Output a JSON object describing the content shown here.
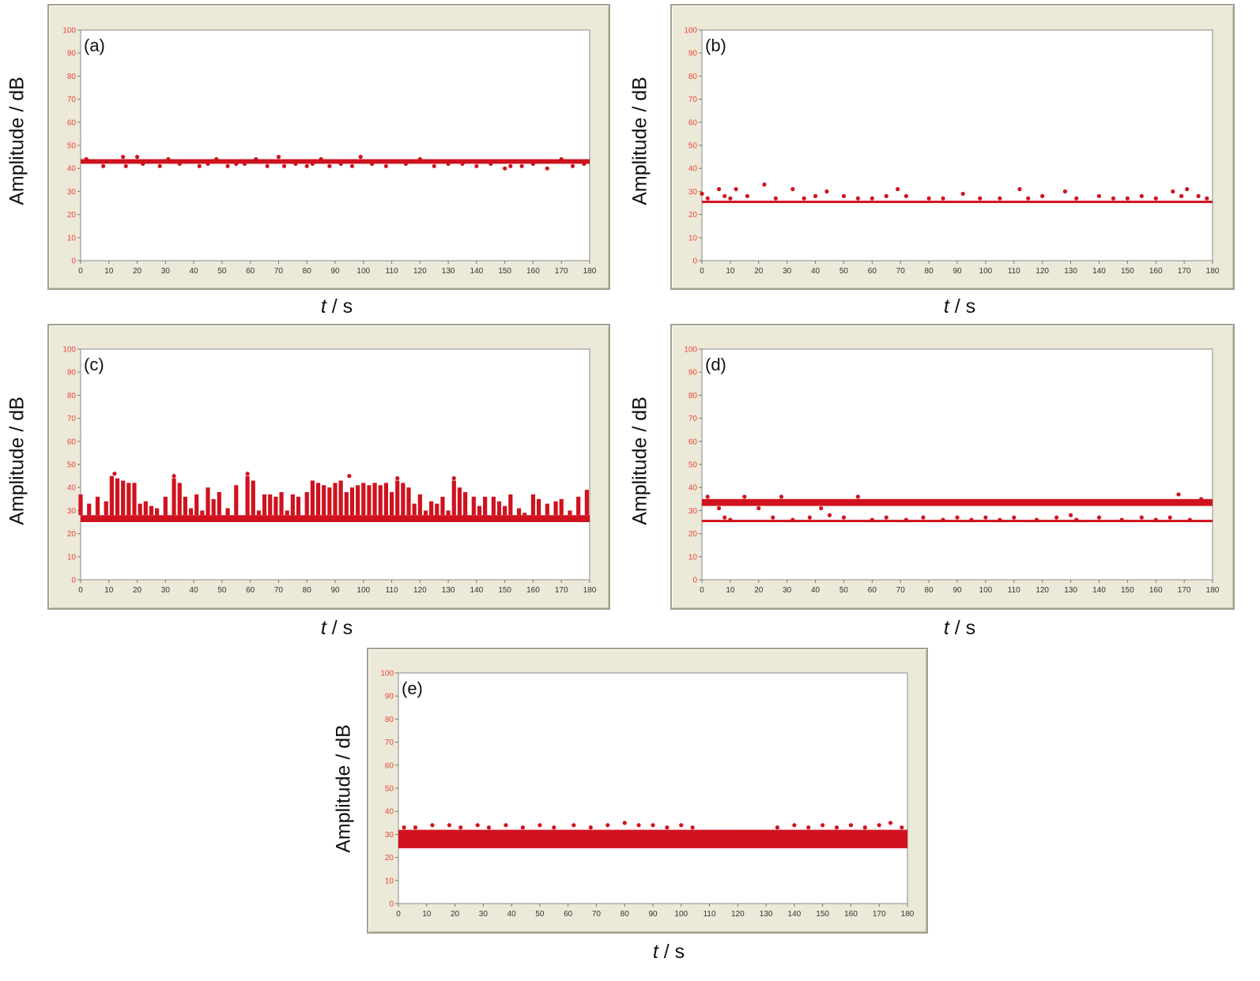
{
  "colors": {
    "marker": "#d0121e",
    "ytick": "#e8463d",
    "xtick": "#333333",
    "frame": "#ece9d8",
    "plot_bg": "#ffffff"
  },
  "chart_data": [
    {
      "type": "scatter",
      "panel_label": "(a)",
      "xlabel_var": "t",
      "xlabel_unit": " / s",
      "ylabel": "Amplitude / dB",
      "xlim": [
        0,
        180
      ],
      "ylim": [
        0,
        100
      ],
      "xticks": [
        "0",
        "10",
        "20",
        "30",
        "40",
        "50",
        "60",
        "70",
        "80",
        "90",
        "100",
        "110",
        "120",
        "130",
        "140",
        "150",
        "160",
        "170",
        "180"
      ],
      "yticks": [
        "0",
        "10",
        "20",
        "30",
        "40",
        "50",
        "60",
        "70",
        "80",
        "90",
        "100"
      ],
      "band": {
        "x": [
          0,
          180
        ],
        "y": [
          42,
          44
        ]
      },
      "points": [
        [
          2,
          44
        ],
        [
          8,
          41
        ],
        [
          15,
          45
        ],
        [
          16,
          41
        ],
        [
          20,
          45
        ],
        [
          22,
          42
        ],
        [
          28,
          41
        ],
        [
          31,
          44
        ],
        [
          35,
          42
        ],
        [
          42,
          41
        ],
        [
          45,
          42
        ],
        [
          48,
          44
        ],
        [
          52,
          41
        ],
        [
          55,
          42
        ],
        [
          58,
          42
        ],
        [
          62,
          44
        ],
        [
          66,
          41
        ],
        [
          70,
          45
        ],
        [
          72,
          41
        ],
        [
          76,
          42
        ],
        [
          80,
          41
        ],
        [
          82,
          42
        ],
        [
          85,
          44
        ],
        [
          88,
          41
        ],
        [
          92,
          42
        ],
        [
          96,
          41
        ],
        [
          99,
          45
        ],
        [
          103,
          42
        ],
        [
          108,
          41
        ],
        [
          115,
          42
        ],
        [
          120,
          44
        ],
        [
          125,
          41
        ],
        [
          130,
          42
        ],
        [
          135,
          42
        ],
        [
          140,
          41
        ],
        [
          145,
          42
        ],
        [
          150,
          40
        ],
        [
          152,
          41
        ],
        [
          156,
          41
        ],
        [
          160,
          42
        ],
        [
          165,
          40
        ],
        [
          170,
          44
        ],
        [
          174,
          41
        ],
        [
          178,
          42
        ]
      ]
    },
    {
      "type": "scatter",
      "panel_label": "(b)",
      "xlabel_var": "t",
      "xlabel_unit": " / s",
      "ylabel": "Amplitude / dB",
      "xlim": [
        0,
        180
      ],
      "ylim": [
        0,
        100
      ],
      "xticks": [
        "0",
        "10",
        "20",
        "30",
        "40",
        "50",
        "60",
        "70",
        "80",
        "90",
        "100",
        "110",
        "120",
        "130",
        "140",
        "150",
        "160",
        "170",
        "180"
      ],
      "yticks": [
        "0",
        "10",
        "20",
        "30",
        "40",
        "50",
        "60",
        "70",
        "80",
        "90",
        "100"
      ],
      "band": {
        "x": [
          0,
          180
        ],
        "y": [
          25,
          26
        ]
      },
      "points": [
        [
          0,
          29
        ],
        [
          2,
          27
        ],
        [
          6,
          31
        ],
        [
          8,
          28
        ],
        [
          10,
          27
        ],
        [
          12,
          31
        ],
        [
          16,
          28
        ],
        [
          22,
          33
        ],
        [
          26,
          27
        ],
        [
          32,
          31
        ],
        [
          36,
          27
        ],
        [
          40,
          28
        ],
        [
          44,
          30
        ],
        [
          50,
          28
        ],
        [
          55,
          27
        ],
        [
          60,
          27
        ],
        [
          65,
          28
        ],
        [
          69,
          31
        ],
        [
          72,
          28
        ],
        [
          80,
          27
        ],
        [
          85,
          27
        ],
        [
          92,
          29
        ],
        [
          98,
          27
        ],
        [
          105,
          27
        ],
        [
          112,
          31
        ],
        [
          115,
          27
        ],
        [
          120,
          28
        ],
        [
          128,
          30
        ],
        [
          132,
          27
        ],
        [
          140,
          28
        ],
        [
          145,
          27
        ],
        [
          150,
          27
        ],
        [
          155,
          28
        ],
        [
          160,
          27
        ],
        [
          166,
          30
        ],
        [
          169,
          28
        ],
        [
          171,
          31
        ],
        [
          175,
          28
        ],
        [
          178,
          27
        ]
      ]
    },
    {
      "type": "scatter",
      "panel_label": "(c)",
      "xlabel_var": "t",
      "xlabel_unit": " / s",
      "ylabel": "Amplitude / dB",
      "xlim": [
        0,
        180
      ],
      "ylim": [
        0,
        100
      ],
      "xticks": [
        "0",
        "10",
        "20",
        "30",
        "40",
        "50",
        "60",
        "70",
        "80",
        "90",
        "100",
        "110",
        "120",
        "130",
        "140",
        "150",
        "160",
        "170",
        "180"
      ],
      "yticks": [
        "0",
        "10",
        "20",
        "30",
        "40",
        "50",
        "60",
        "70",
        "80",
        "90",
        "100"
      ],
      "band": {
        "x": [
          0,
          180
        ],
        "y": [
          25,
          28
        ]
      },
      "bursts": [
        [
          0,
          37
        ],
        [
          3,
          33
        ],
        [
          6,
          36
        ],
        [
          9,
          34
        ],
        [
          11,
          45
        ],
        [
          13,
          44
        ],
        [
          15,
          43
        ],
        [
          17,
          42
        ],
        [
          19,
          42
        ],
        [
          21,
          33
        ],
        [
          23,
          34
        ],
        [
          25,
          32
        ],
        [
          27,
          31
        ],
        [
          30,
          36
        ],
        [
          33,
          44
        ],
        [
          35,
          42
        ],
        [
          37,
          36
        ],
        [
          39,
          31
        ],
        [
          41,
          37
        ],
        [
          43,
          30
        ],
        [
          45,
          40
        ],
        [
          47,
          35
        ],
        [
          49,
          38
        ],
        [
          52,
          31
        ],
        [
          55,
          41
        ],
        [
          59,
          45
        ],
        [
          61,
          43
        ],
        [
          63,
          30
        ],
        [
          65,
          37
        ],
        [
          67,
          37
        ],
        [
          69,
          36
        ],
        [
          71,
          38
        ],
        [
          73,
          30
        ],
        [
          75,
          37
        ],
        [
          77,
          36
        ],
        [
          80,
          38
        ],
        [
          82,
          43
        ],
        [
          84,
          42
        ],
        [
          86,
          41
        ],
        [
          88,
          40
        ],
        [
          90,
          42
        ],
        [
          92,
          43
        ],
        [
          94,
          38
        ],
        [
          96,
          40
        ],
        [
          98,
          41
        ],
        [
          100,
          42
        ],
        [
          102,
          41
        ],
        [
          104,
          42
        ],
        [
          106,
          41
        ],
        [
          108,
          42
        ],
        [
          110,
          38
        ],
        [
          112,
          43
        ],
        [
          114,
          42
        ],
        [
          116,
          40
        ],
        [
          118,
          33
        ],
        [
          120,
          37
        ],
        [
          122,
          30
        ],
        [
          124,
          34
        ],
        [
          126,
          33
        ],
        [
          128,
          36
        ],
        [
          130,
          30
        ],
        [
          132,
          43
        ],
        [
          134,
          40
        ],
        [
          136,
          38
        ],
        [
          139,
          36
        ],
        [
          141,
          32
        ],
        [
          143,
          36
        ],
        [
          146,
          36
        ],
        [
          148,
          34
        ],
        [
          150,
          32
        ],
        [
          152,
          37
        ],
        [
          155,
          31
        ],
        [
          157,
          29
        ],
        [
          160,
          37
        ],
        [
          162,
          35
        ],
        [
          165,
          33
        ],
        [
          168,
          34
        ],
        [
          170,
          35
        ],
        [
          173,
          30
        ],
        [
          176,
          36
        ],
        [
          179,
          39
        ]
      ],
      "points": [
        [
          12,
          46
        ],
        [
          33,
          45
        ],
        [
          59,
          46
        ],
        [
          95,
          45
        ],
        [
          112,
          44
        ],
        [
          132,
          44
        ]
      ]
    },
    {
      "type": "scatter",
      "panel_label": "(d)",
      "xlabel_var": "t",
      "xlabel_unit": " / s",
      "ylabel": "Amplitude / dB",
      "xlim": [
        0,
        180
      ],
      "ylim": [
        0,
        100
      ],
      "xticks": [
        "0",
        "10",
        "20",
        "30",
        "40",
        "50",
        "60",
        "70",
        "80",
        "90",
        "100",
        "110",
        "120",
        "130",
        "140",
        "150",
        "160",
        "170",
        "180"
      ],
      "yticks": [
        "0",
        "10",
        "20",
        "30",
        "40",
        "50",
        "60",
        "70",
        "80",
        "90",
        "100"
      ],
      "bands": [
        {
          "x": [
            0,
            180
          ],
          "y": [
            32,
            35
          ]
        },
        {
          "x": [
            0,
            180
          ],
          "y": [
            25,
            26
          ]
        }
      ],
      "points": [
        [
          2,
          36
        ],
        [
          6,
          31
        ],
        [
          8,
          27
        ],
        [
          10,
          26
        ],
        [
          15,
          36
        ],
        [
          20,
          31
        ],
        [
          25,
          27
        ],
        [
          28,
          36
        ],
        [
          32,
          26
        ],
        [
          38,
          27
        ],
        [
          42,
          31
        ],
        [
          45,
          28
        ],
        [
          50,
          27
        ],
        [
          55,
          36
        ],
        [
          60,
          26
        ],
        [
          65,
          27
        ],
        [
          72,
          26
        ],
        [
          78,
          27
        ],
        [
          85,
          26
        ],
        [
          90,
          27
        ],
        [
          95,
          26
        ],
        [
          100,
          27
        ],
        [
          105,
          26
        ],
        [
          110,
          27
        ],
        [
          118,
          26
        ],
        [
          125,
          27
        ],
        [
          130,
          28
        ],
        [
          132,
          26
        ],
        [
          140,
          27
        ],
        [
          148,
          26
        ],
        [
          155,
          27
        ],
        [
          160,
          26
        ],
        [
          165,
          27
        ],
        [
          168,
          37
        ],
        [
          172,
          26
        ],
        [
          176,
          35
        ]
      ]
    },
    {
      "type": "scatter",
      "panel_label": "(e)",
      "xlabel_var": "t",
      "xlabel_unit": " / s",
      "ylabel": "Amplitude / dB",
      "xlim": [
        0,
        180
      ],
      "ylim": [
        0,
        100
      ],
      "xticks": [
        "0",
        "10",
        "20",
        "30",
        "40",
        "50",
        "60",
        "70",
        "80",
        "90",
        "100",
        "110",
        "120",
        "130",
        "140",
        "150",
        "160",
        "170",
        "180"
      ],
      "yticks": [
        "0",
        "10",
        "20",
        "30",
        "40",
        "50",
        "60",
        "70",
        "80",
        "90",
        "100"
      ],
      "band": {
        "x": [
          0,
          180
        ],
        "y": [
          24,
          32
        ]
      },
      "points": [
        [
          2,
          33
        ],
        [
          6,
          33
        ],
        [
          12,
          34
        ],
        [
          18,
          34
        ],
        [
          22,
          33
        ],
        [
          28,
          34
        ],
        [
          32,
          33
        ],
        [
          38,
          34
        ],
        [
          44,
          33
        ],
        [
          50,
          34
        ],
        [
          55,
          33
        ],
        [
          62,
          34
        ],
        [
          68,
          33
        ],
        [
          74,
          34
        ],
        [
          80,
          35
        ],
        [
          85,
          34
        ],
        [
          90,
          34
        ],
        [
          95,
          33
        ],
        [
          100,
          34
        ],
        [
          104,
          33
        ],
        [
          108,
          31
        ],
        [
          115,
          31
        ],
        [
          120,
          31
        ],
        [
          126,
          31
        ],
        [
          130,
          30
        ],
        [
          134,
          33
        ],
        [
          140,
          34
        ],
        [
          145,
          33
        ],
        [
          150,
          34
        ],
        [
          155,
          33
        ],
        [
          160,
          34
        ],
        [
          165,
          33
        ],
        [
          170,
          34
        ],
        [
          174,
          35
        ],
        [
          178,
          33
        ]
      ]
    }
  ]
}
